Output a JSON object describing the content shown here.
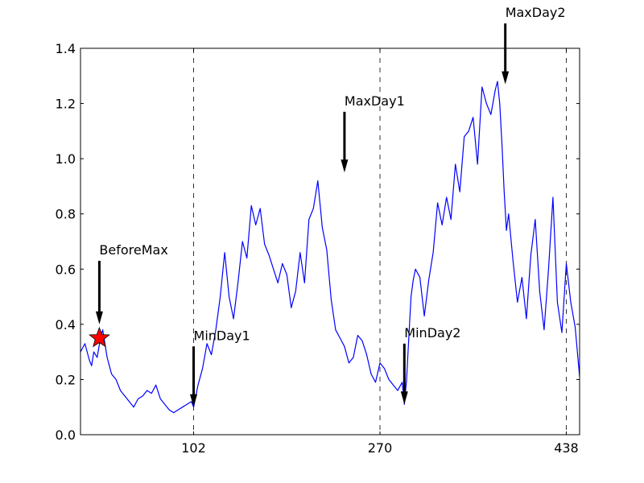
{
  "chart_data": {
    "type": "line",
    "title": "",
    "xlabel": "",
    "ylabel": "",
    "xlim": [
      0,
      450
    ],
    "ylim": [
      0.0,
      1.4
    ],
    "x_ticks": [
      102,
      270,
      438
    ],
    "x_tick_labels": [
      "102",
      "270",
      "438"
    ],
    "y_ticks": [
      0.0,
      0.2,
      0.4,
      0.6,
      0.8,
      1.0,
      1.2,
      1.4
    ],
    "y_tick_labels": [
      "0.0",
      "0.2",
      "0.4",
      "0.6",
      "0.8",
      "1.0",
      "1.2",
      "1.4"
    ],
    "vlines": [
      102,
      270,
      438
    ],
    "grid": false,
    "series": [
      {
        "color": "#0000ff",
        "x": [
          0,
          4,
          8,
          10,
          12,
          15,
          18,
          20,
          22,
          24,
          26,
          28,
          32,
          36,
          40,
          44,
          48,
          52,
          56,
          60,
          64,
          68,
          72,
          76,
          80,
          84,
          88,
          92,
          96,
          100,
          102,
          106,
          110,
          114,
          118,
          122,
          126,
          130,
          134,
          138,
          142,
          146,
          150,
          154,
          158,
          162,
          166,
          170,
          174,
          178,
          182,
          186,
          190,
          194,
          198,
          202,
          206,
          210,
          214,
          218,
          222,
          226,
          230,
          234,
          238,
          242,
          246,
          250,
          254,
          258,
          262,
          266,
          270,
          274,
          278,
          282,
          286,
          290,
          292,
          294,
          296,
          298,
          300,
          302,
          306,
          310,
          314,
          318,
          322,
          326,
          330,
          334,
          338,
          342,
          346,
          350,
          354,
          358,
          362,
          366,
          370,
          374,
          376,
          378,
          380,
          382,
          384,
          386,
          390,
          394,
          398,
          402,
          406,
          410,
          414,
          418,
          422,
          426,
          430,
          434,
          438,
          442,
          446,
          450
        ],
        "y": [
          0.3,
          0.33,
          0.27,
          0.25,
          0.3,
          0.28,
          0.35,
          0.38,
          0.33,
          0.28,
          0.25,
          0.22,
          0.2,
          0.16,
          0.14,
          0.12,
          0.1,
          0.13,
          0.14,
          0.16,
          0.15,
          0.18,
          0.13,
          0.11,
          0.09,
          0.08,
          0.09,
          0.1,
          0.11,
          0.12,
          0.1,
          0.18,
          0.24,
          0.33,
          0.29,
          0.38,
          0.5,
          0.66,
          0.5,
          0.42,
          0.55,
          0.7,
          0.64,
          0.83,
          0.76,
          0.82,
          0.69,
          0.65,
          0.6,
          0.55,
          0.62,
          0.58,
          0.46,
          0.52,
          0.66,
          0.55,
          0.78,
          0.82,
          0.92,
          0.75,
          0.67,
          0.49,
          0.38,
          0.35,
          0.32,
          0.26,
          0.28,
          0.36,
          0.34,
          0.29,
          0.22,
          0.19,
          0.26,
          0.24,
          0.2,
          0.18,
          0.16,
          0.19,
          0.11,
          0.2,
          0.35,
          0.5,
          0.56,
          0.6,
          0.57,
          0.43,
          0.56,
          0.66,
          0.84,
          0.76,
          0.86,
          0.78,
          0.98,
          0.88,
          1.08,
          1.1,
          1.15,
          0.98,
          1.26,
          1.2,
          1.16,
          1.25,
          1.28,
          1.2,
          1.05,
          0.88,
          0.74,
          0.8,
          0.63,
          0.48,
          0.57,
          0.42,
          0.65,
          0.78,
          0.52,
          0.38,
          0.6,
          0.86,
          0.48,
          0.37,
          0.62,
          0.48,
          0.39,
          0.21
        ]
      }
    ],
    "markers": [
      {
        "shape": "star",
        "color": "#ff0000",
        "x": 17,
        "y": 0.35
      }
    ],
    "annotations": [
      {
        "text": "BeforeMax",
        "x": 17,
        "y": 0.4,
        "text_x": 17,
        "text_y": 0.63
      },
      {
        "text": "MinDay1",
        "x": 102,
        "y": 0.1,
        "text_x": 102,
        "text_y": 0.32
      },
      {
        "text": "MaxDay1",
        "x": 238,
        "y": 0.95,
        "text_x": 238,
        "text_y": 1.17
      },
      {
        "text": "MinDay2",
        "x": 292,
        "y": 0.11,
        "text_x": 292,
        "text_y": 0.33
      },
      {
        "text": "MaxDay2",
        "x": 383,
        "y": 1.27,
        "text_x": 383,
        "text_y": 1.49
      }
    ]
  }
}
